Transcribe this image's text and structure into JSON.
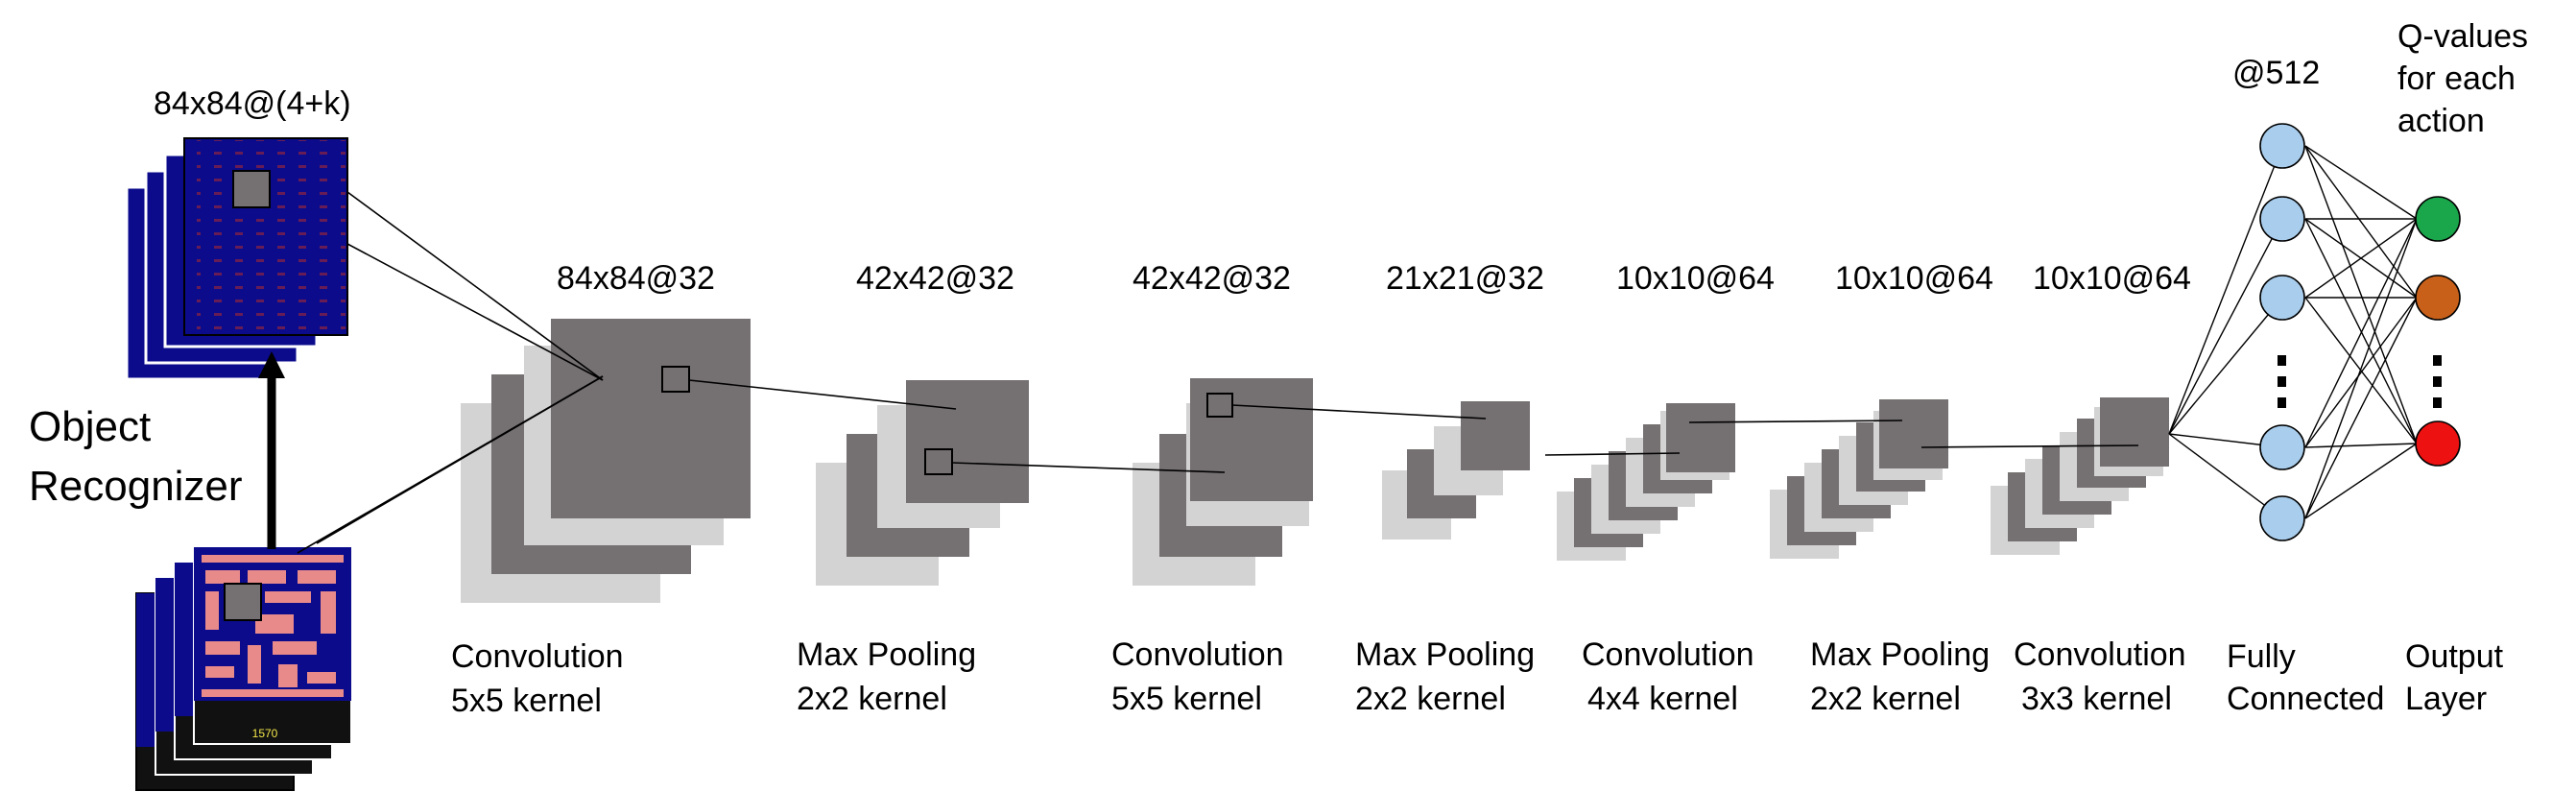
{
  "input": {
    "dim": "84x84@(4+k)",
    "recognizer_line1": "Object",
    "recognizer_line2": "Recognizer",
    "game_score": "1570"
  },
  "layers": [
    {
      "dim": "84x84@32",
      "line1": "Convolution",
      "line2": "5x5 kernel"
    },
    {
      "dim": "42x42@32",
      "line1": "Max Pooling",
      "line2": "2x2 kernel"
    },
    {
      "dim": "42x42@32",
      "line1": "Convolution",
      "line2": "5x5 kernel"
    },
    {
      "dim": "21x21@32",
      "line1": "Max Pooling",
      "line2": "2x2 kernel"
    },
    {
      "dim": "10x10@64",
      "line1": "Convolution",
      "line2": "4x4 kernel"
    },
    {
      "dim": "10x10@64",
      "line1": "Max Pooling",
      "line2": "2x2 kernel"
    },
    {
      "dim": "10x10@64",
      "line1": "Convolution",
      "line2": "3x3 kernel"
    }
  ],
  "fc": {
    "dim": "@512",
    "line1": "Fully",
    "line2": "Connected"
  },
  "output": {
    "title_line1": "Q-values",
    "title_line2": "for each",
    "title_line3": "action",
    "line1": "Output",
    "line2": "Layer",
    "node_colors": [
      "#1aa64b",
      "#c8601a",
      "#ee1111"
    ]
  },
  "colors": {
    "map_dark": "#757071",
    "map_light": "#d4d3d3",
    "neuron_fill": "#a9cdec",
    "frame_blue": "#0b0b8c",
    "maze_pink": "#e88a8a"
  }
}
